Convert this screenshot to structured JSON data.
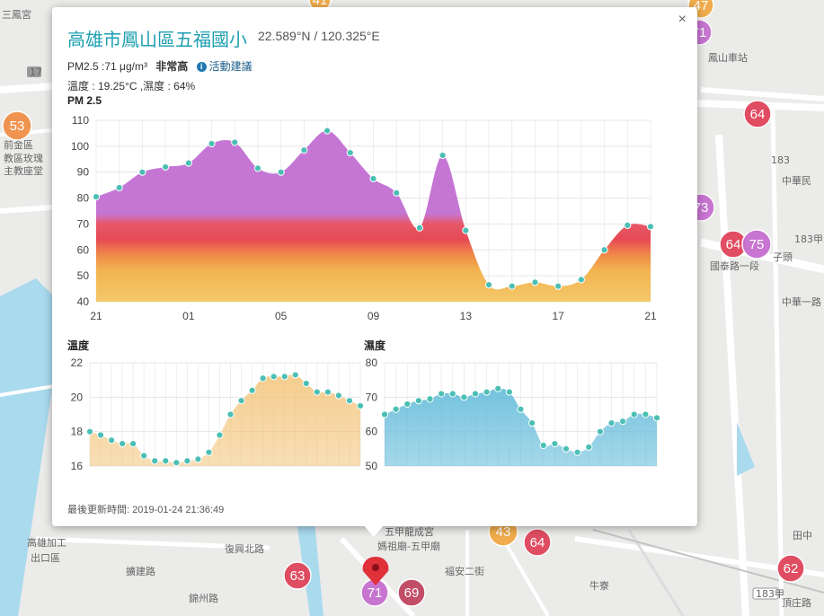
{
  "popup": {
    "title": "高雄市鳳山區五福國小",
    "coords": "22.589°N / 120.325°E",
    "pm_text": "PM2.5 :71 μg/m³",
    "pm_level": "非常高",
    "advice_label": "活動建議",
    "weather": "溫度 : 19.25°C ,濕度 : 64%",
    "close_label": "×",
    "pm_chart_title": "PM 2.5",
    "temp_chart_title": "溫度",
    "humidity_chart_title": "濕度",
    "updated": "最後更新時間: 2019-01-24 21:36:49"
  },
  "chart_data": [
    {
      "type": "area",
      "title": "PM 2.5",
      "x_tick_labels": [
        "21",
        "01",
        "05",
        "09",
        "13",
        "17",
        "21"
      ],
      "ylim": [
        40,
        110
      ],
      "y_ticks": [
        40,
        50,
        60,
        70,
        80,
        90,
        100,
        110
      ],
      "values": [
        80.5,
        84,
        90,
        92,
        93.5,
        101,
        101.5,
        91.5,
        90,
        98.5,
        106,
        97.5,
        87.5,
        82,
        68.5,
        96.5,
        67.5,
        46.5,
        46,
        47.5,
        46,
        48.5,
        60,
        69.5,
        69
      ],
      "grid": true,
      "colors": [
        "#c77bd6",
        "#e45050",
        "#f0a640",
        "#f4c86a"
      ]
    },
    {
      "type": "area",
      "title": "溫度",
      "ylim": [
        16,
        22
      ],
      "y_ticks": [
        16,
        18,
        20,
        22
      ],
      "values": [
        18,
        17.8,
        17.5,
        17.3,
        17.3,
        16.6,
        16.3,
        16.3,
        16.2,
        16.3,
        16.4,
        16.8,
        17.8,
        19,
        19.8,
        20.4,
        21.1,
        21.2,
        21.2,
        21.3,
        20.8,
        20.3,
        20.3,
        20.1,
        19.8,
        19.5
      ],
      "grid": true,
      "colors": [
        "#f3c47a"
      ]
    },
    {
      "type": "area",
      "title": "濕度",
      "ylim": [
        50,
        80
      ],
      "y_ticks": [
        50,
        60,
        70,
        80
      ],
      "values": [
        65,
        66.5,
        68,
        69,
        69.5,
        71,
        71,
        70,
        71,
        71.5,
        72.5,
        71.5,
        66.5,
        62.5,
        56,
        56.5,
        55,
        54,
        55.5,
        60,
        62.5,
        63,
        65,
        65,
        64
      ],
      "grid": true,
      "colors": [
        "#5cb8d8"
      ]
    }
  ],
  "map": {
    "markers": [
      {
        "label": "53",
        "color": "#f09048"
      },
      {
        "label": "71",
        "color": "#c66fd0"
      },
      {
        "label": "64",
        "color": "#e0445a"
      },
      {
        "label": "73",
        "color": "#c66fd0"
      },
      {
        "label": "64",
        "color": "#e0445a"
      },
      {
        "label": "75",
        "color": "#c66fd0"
      },
      {
        "label": "43",
        "color": "#f1a944"
      },
      {
        "label": "64",
        "color": "#e0445a"
      },
      {
        "label": "63",
        "color": "#e0445a"
      },
      {
        "label": "71",
        "color": "#c66fd0"
      },
      {
        "label": "69",
        "color": "#c04560"
      },
      {
        "label": "62",
        "color": "#e0445a"
      },
      {
        "label": "47",
        "color": "#f1a944"
      },
      {
        "label": "41",
        "color": "#f1a944"
      }
    ],
    "labels": {
      "l1": "三鳳宮",
      "l2": "鳳山車站",
      "l3": "中華民",
      "l4": "子頭",
      "l5": "高雄加工",
      "l6": "出口區",
      "l7": "五甲龍成宮",
      "l8": "媽祖廟-五甲廟",
      "l9": "牛寮",
      "l10": "田中",
      "l11": "183甲",
      "l12": "183",
      "l13": "頂庄路",
      "l14": "前金區",
      "l15": "教區玫瑰",
      "l16": "主教座堂",
      "l17": "國泰路一段",
      "l18": "中華一路",
      "l19": "福安二街",
      "l20": "錦州路",
      "l21": "擴建路",
      "l22": "復興北路",
      "l23": "17",
      "l24": "183甲"
    }
  }
}
